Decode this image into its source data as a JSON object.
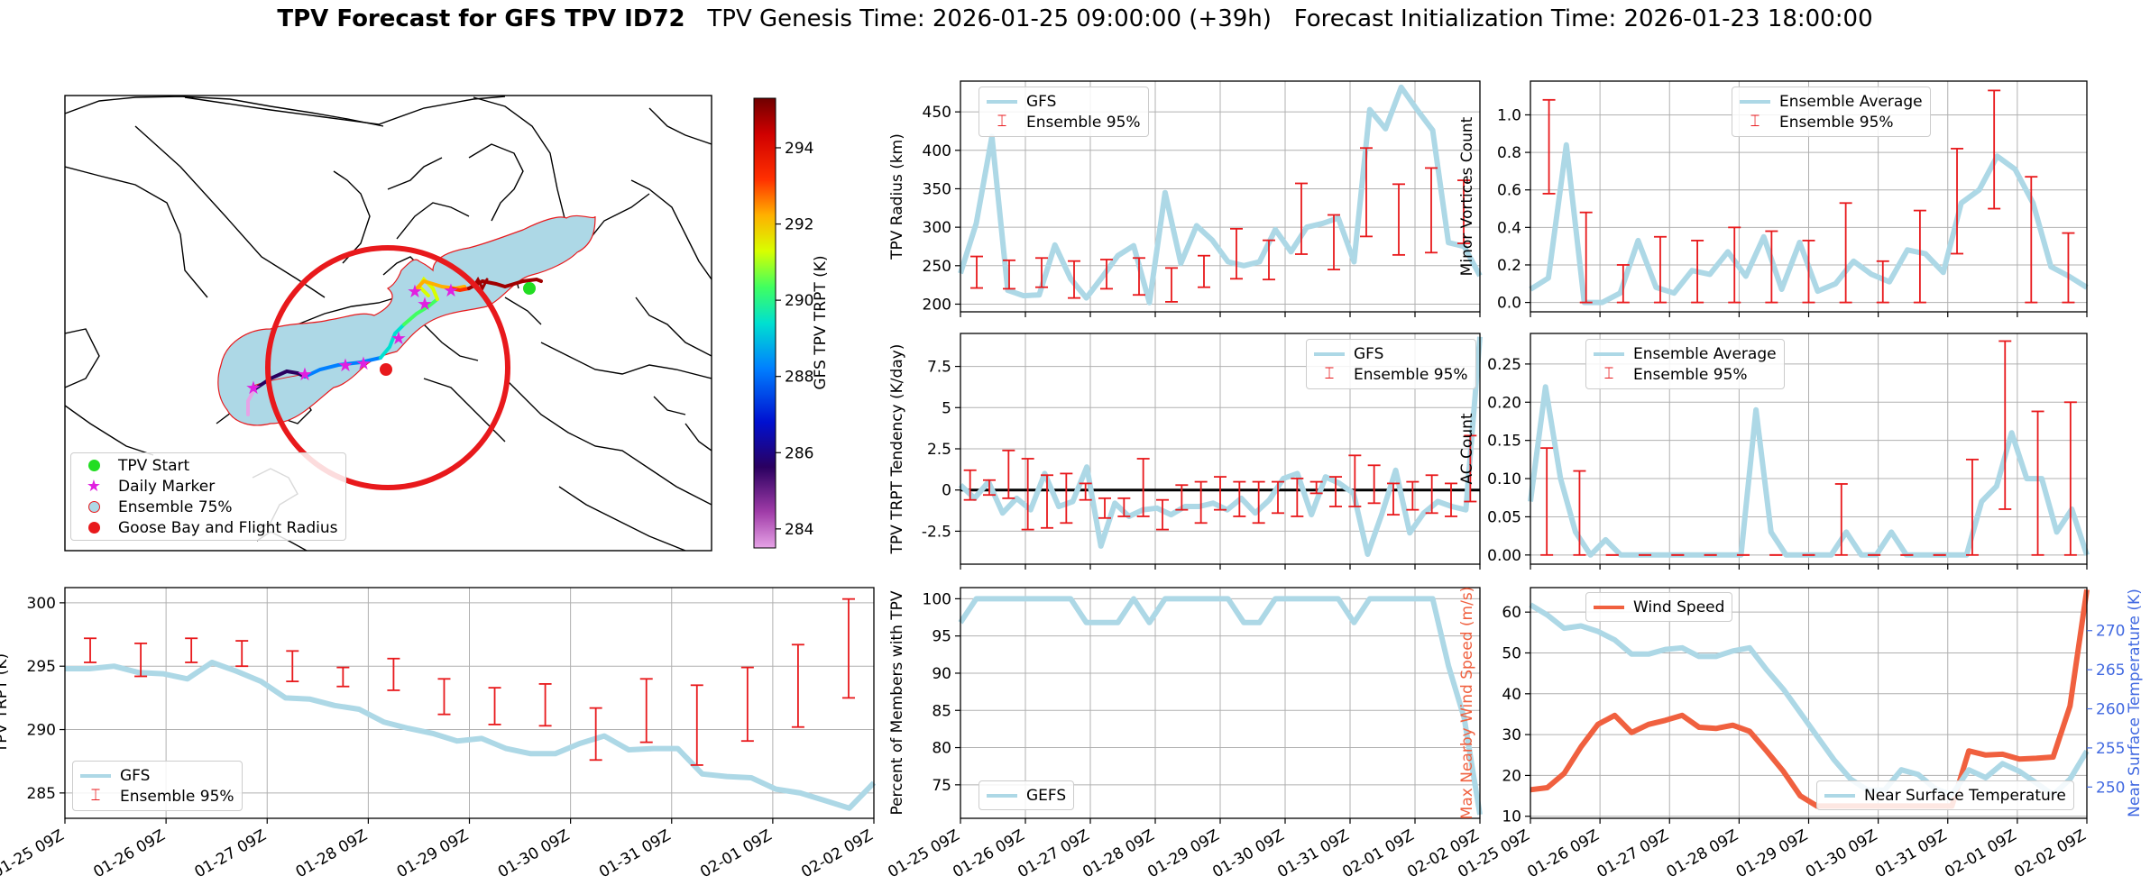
{
  "title": {
    "bold": "TPV Forecast for GFS TPV ID72",
    "genesis": "TPV Genesis Time: 2026-01-25 09:00:00 (+39h)",
    "init": "Forecast Initialization Time: 2026-01-23 18:00:00"
  },
  "colors": {
    "gfs": "#add8e6",
    "errorbar": "#e8191c",
    "wind": "#f0603f",
    "temp_axis": "#4169e1",
    "zero_line": "#000000"
  },
  "x_ticks": [
    "01-25 09Z",
    "01-26 09Z",
    "01-27 09Z",
    "01-28 09Z",
    "01-29 09Z",
    "01-30 09Z",
    "01-31 09Z",
    "02-01 09Z",
    "02-02 09Z"
  ],
  "map": {
    "legend": [
      "TPV Start",
      "Daily Marker",
      "Ensemble 75%",
      "Goose Bay and Flight Radius"
    ],
    "colorbar_label": "GFS TPV TRPT (K)",
    "colorbar_ticks": [
      "284",
      "286",
      "288",
      "290",
      "292",
      "294"
    ],
    "colorbar_values": [
      284,
      286,
      288,
      290,
      292,
      294
    ],
    "colorbar_range": [
      283.5,
      295.3
    ]
  },
  "chart_data": [
    {
      "id": "radius",
      "type": "line",
      "ylabel": "TPV Radius (km)",
      "ylim": [
        190,
        490
      ],
      "yticks": [
        200,
        250,
        300,
        350,
        400,
        450
      ],
      "grid": true,
      "legend": [
        "GFS",
        "Ensemble 95%"
      ],
      "legend_position": "top-left",
      "series": [
        {
          "name": "GFS",
          "values": [
            240,
            305,
            418,
            218,
            211,
            212,
            277,
            233,
            208,
            235,
            263,
            276,
            202,
            345,
            253,
            302,
            283,
            255,
            250,
            255,
            297,
            268,
            300,
            305,
            312,
            255,
            453,
            428,
            482,
            453,
            426,
            280,
            275,
            237
          ]
        }
      ],
      "errorbars": [
        [
          221,
          262
        ],
        [
          220,
          257
        ],
        [
          222,
          260
        ],
        [
          208,
          256
        ],
        [
          220,
          258
        ],
        [
          212,
          260
        ],
        [
          203,
          247
        ],
        [
          222,
          263
        ],
        [
          233,
          298
        ],
        [
          232,
          283
        ],
        [
          265,
          357
        ],
        [
          245,
          316
        ],
        [
          288,
          403
        ],
        [
          264,
          356
        ],
        [
          267,
          377
        ],
        [
          279,
          361
        ]
      ]
    },
    {
      "id": "minor",
      "type": "line",
      "ylabel": "Minor Vortices Count",
      "ylim": [
        -0.05,
        1.18
      ],
      "yticks": [
        0.0,
        0.2,
        0.4,
        0.6,
        0.8,
        1.0
      ],
      "grid": true,
      "legend": [
        "Ensemble Average",
        "Ensemble 95%"
      ],
      "legend_position": "top-center",
      "series": [
        {
          "name": "Ensemble Average",
          "values": [
            0.07,
            0.13,
            0.84,
            0.0,
            0.0,
            0.05,
            0.33,
            0.08,
            0.05,
            0.17,
            0.15,
            0.27,
            0.14,
            0.35,
            0.07,
            0.32,
            0.06,
            0.1,
            0.22,
            0.15,
            0.11,
            0.28,
            0.26,
            0.16,
            0.53,
            0.6,
            0.78,
            0.71,
            0.53,
            0.19,
            0.14,
            0.08
          ]
        }
      ],
      "errorbars": [
        [
          0.58,
          1.08
        ],
        [
          0.0,
          0.48
        ],
        [
          0.0,
          0.2
        ],
        [
          0.0,
          0.35
        ],
        [
          0.0,
          0.33
        ],
        [
          0.0,
          0.4
        ],
        [
          0.0,
          0.38
        ],
        [
          0.0,
          0.33
        ],
        [
          0.0,
          0.53
        ],
        [
          0.0,
          0.22
        ],
        [
          0.0,
          0.49
        ],
        [
          0.26,
          0.82
        ],
        [
          0.5,
          1.13
        ],
        [
          0.0,
          0.67
        ],
        [
          0.0,
          0.37
        ]
      ]
    },
    {
      "id": "tendency",
      "type": "line",
      "ylabel": "TPV TRPT Tendency (K/day)",
      "ylim": [
        -4.5,
        9.5
      ],
      "yticks": [
        -2.5,
        0.0,
        2.5,
        5.0,
        7.5
      ],
      "grid": true,
      "legend": [
        "GFS",
        "Ensemble 95%"
      ],
      "legend_position": "top-right",
      "series": [
        {
          "name": "GFS",
          "values": [
            0.3,
            -0.5,
            0.5,
            -1.4,
            -0.5,
            -1.2,
            1.0,
            -1.0,
            -0.7,
            1.4,
            -3.4,
            -0.8,
            -1.6,
            -1.2,
            -1.1,
            -1.5,
            -1.0,
            -1.0,
            -0.8,
            -1.2,
            -0.5,
            -1.4,
            -0.6,
            0.7,
            1.0,
            -1.5,
            0.8,
            0.4,
            -0.2,
            -3.9,
            -1.5,
            1.2,
            -2.6,
            -1.4,
            -0.7,
            -1.0,
            -1.2,
            9.3
          ]
        }
      ],
      "errorbars": [
        [
          -0.6,
          1.2
        ],
        [
          -0.3,
          0.6
        ],
        [
          -0.5,
          2.4
        ],
        [
          -2.4,
          1.9
        ],
        [
          -2.3,
          0.9
        ],
        [
          -2.0,
          1.0
        ],
        [
          -0.6,
          0.4
        ],
        [
          -1.7,
          -0.5
        ],
        [
          -1.6,
          -0.5
        ],
        [
          -1.6,
          1.9
        ],
        [
          -2.4,
          -0.6
        ],
        [
          -1.2,
          0.3
        ],
        [
          -2.0,
          0.5
        ],
        [
          -1.2,
          0.8
        ],
        [
          -1.6,
          0.5
        ],
        [
          -2.0,
          0.5
        ],
        [
          -1.4,
          0.5
        ],
        [
          -1.6,
          0.7
        ],
        [
          -0.2,
          0.5
        ],
        [
          -1.0,
          0.8
        ],
        [
          -1.0,
          2.1
        ],
        [
          -0.8,
          1.5
        ],
        [
          -1.5,
          0.4
        ],
        [
          -1.2,
          0.5
        ],
        [
          -1.4,
          0.9
        ],
        [
          -1.6,
          0.4
        ],
        [
          -0.7,
          3.3
        ]
      ]
    },
    {
      "id": "ac",
      "type": "line",
      "ylabel": "AC Count",
      "ylim": [
        -0.012,
        0.29
      ],
      "yticks": [
        0.0,
        0.05,
        0.1,
        0.15,
        0.2,
        0.25
      ],
      "grid": true,
      "legend": [
        "Ensemble Average",
        "Ensemble 95%"
      ],
      "legend_position": "top-left",
      "series": [
        {
          "name": "Ensemble Average",
          "values": [
            0.07,
            0.22,
            0.1,
            0.03,
            0.0,
            0.02,
            0.0,
            0.0,
            0.0,
            0.0,
            0.0,
            0.0,
            0.0,
            0.0,
            0.0,
            0.19,
            0.03,
            0.0,
            0.0,
            0.0,
            0.0,
            0.03,
            0.0,
            0.0,
            0.03,
            0.0,
            0.0,
            0.0,
            0.0,
            0.0,
            0.07,
            0.09,
            0.16,
            0.1,
            0.1,
            0.03,
            0.06,
            0.0
          ]
        }
      ],
      "errorbars": [
        [
          0.0,
          0.14
        ],
        [
          0.0,
          0.11
        ],
        [
          0.0,
          0.0
        ],
        [
          0.0,
          0.0
        ],
        [
          0.0,
          0.0
        ],
        [
          0.0,
          0.0
        ],
        [
          0.0,
          0.0
        ],
        [
          0.0,
          0.0
        ],
        [
          0.0,
          0.0
        ],
        [
          0.0,
          0.093
        ],
        [
          0.0,
          0.0
        ],
        [
          0.0,
          0.0
        ],
        [
          0.0,
          0.0
        ],
        [
          0.0,
          0.125
        ],
        [
          0.06,
          0.28
        ],
        [
          0.0,
          0.188
        ],
        [
          0.0,
          0.2
        ]
      ]
    },
    {
      "id": "trpt",
      "type": "line",
      "ylabel": "TPV TRPT (K)",
      "ylim": [
        283.0,
        301.2
      ],
      "yticks": [
        285,
        290,
        295,
        300
      ],
      "grid": true,
      "legend": [
        "GFS",
        "Ensemble 95%"
      ],
      "legend_position": "bottom-left",
      "series": [
        {
          "name": "GFS",
          "values": [
            294.8,
            294.8,
            295.0,
            294.5,
            294.4,
            294.0,
            295.3,
            294.6,
            293.8,
            292.5,
            292.4,
            291.9,
            291.6,
            290.6,
            290.1,
            289.7,
            289.1,
            289.3,
            288.5,
            288.1,
            288.1,
            288.9,
            289.5,
            288.4,
            288.5,
            288.5,
            286.5,
            286.3,
            286.2,
            285.3,
            285.0,
            284.4,
            283.8,
            285.8
          ]
        }
      ],
      "errorbars": [
        [
          295.3,
          297.2
        ],
        [
          294.2,
          296.8
        ],
        [
          295.3,
          297.2
        ],
        [
          295.0,
          297.0
        ],
        [
          293.8,
          296.2
        ],
        [
          293.4,
          294.9
        ],
        [
          293.1,
          295.6
        ],
        [
          291.2,
          294.0
        ],
        [
          290.4,
          293.3
        ],
        [
          290.3,
          293.6
        ],
        [
          287.6,
          291.7
        ],
        [
          289.0,
          294.0
        ],
        [
          287.2,
          293.5
        ],
        [
          289.1,
          294.9
        ],
        [
          290.2,
          296.7
        ],
        [
          292.5,
          300.3
        ]
      ]
    },
    {
      "id": "members",
      "type": "line",
      "ylabel": "Percent of Members with TPV",
      "ylim": [
        70.5,
        101.5
      ],
      "yticks": [
        75,
        80,
        85,
        90,
        95,
        100
      ],
      "grid": true,
      "legend": [
        "GEFS"
      ],
      "legend_position": "bottom-left",
      "series": [
        {
          "name": "GEFS",
          "values": [
            96.8,
            100,
            100,
            100,
            100,
            100,
            100,
            100,
            96.8,
            96.8,
            96.8,
            100,
            96.8,
            100,
            100,
            100,
            100,
            100,
            96.8,
            96.8,
            100,
            100,
            100,
            100,
            100,
            96.8,
            100,
            100,
            100,
            100,
            100,
            91,
            84,
            71
          ]
        }
      ]
    },
    {
      "id": "wind_temp",
      "type": "line",
      "ylabel": "Max Nearby Wind Speed (m/s)",
      "ylabel_right": "Near Surface Temperature (K)",
      "ylim": [
        9.5,
        66
      ],
      "yticks": [
        10,
        20,
        30,
        40,
        50,
        60
      ],
      "ylim_right": [
        246,
        275.5
      ],
      "yticks_right": [
        250,
        255,
        260,
        265,
        270
      ],
      "grid": true,
      "legend": [
        "Wind Speed"
      ],
      "legend_position": "top-left",
      "legend_right": [
        "Near Surface Temperature"
      ],
      "legend_right_position": "bottom-right",
      "series": [
        {
          "name": "Wind Speed",
          "values": [
            16.5,
            17.0,
            20.5,
            27.0,
            32.5,
            34.7,
            30.5,
            32.5,
            33.5,
            34.7,
            31.8,
            31.5,
            32.3,
            30.8,
            26.0,
            21.0,
            15.0,
            12.5,
            12.5,
            12.5,
            12.5,
            12.5,
            12.5,
            12.5,
            12.5,
            12.5,
            26.0,
            25.0,
            25.2,
            24.0,
            24.2,
            24.5,
            37.0,
            65.5
          ]
        },
        {
          "name": "Near Surface Temperature",
          "values": [
            273.3,
            272.0,
            270.3,
            270.6,
            269.9,
            268.8,
            267.0,
            267.0,
            267.6,
            267.8,
            266.7,
            266.7,
            267.4,
            267.8,
            265.0,
            262.5,
            259.5,
            256.5,
            253.5,
            251.0,
            249.6,
            249.6,
            252.2,
            251.6,
            249.8,
            249.0,
            252.2,
            251.2,
            253.0,
            252.0,
            250.5,
            249.0,
            251.0,
            254.6
          ]
        }
      ]
    }
  ]
}
